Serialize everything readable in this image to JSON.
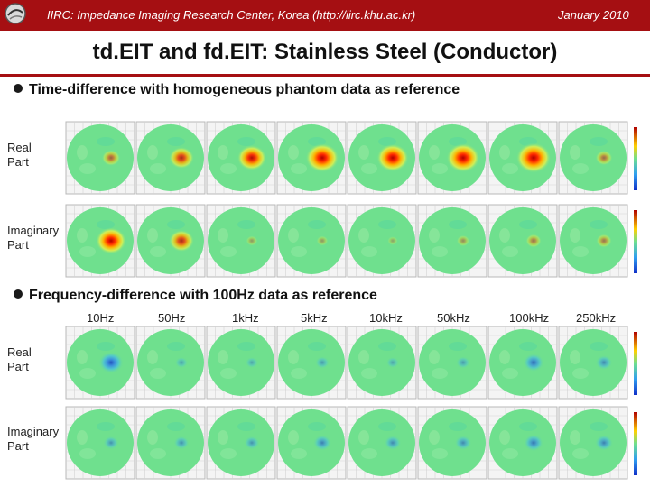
{
  "header": {
    "left_text": "IIRC: Impedance Imaging Research Center, Korea (http://iirc.khu.ac.kr)",
    "right_text": "January 2010",
    "logo": "iirc-logo-icon"
  },
  "title": "td.EIT and fd.EIT: Stainless Steel (Conductor)",
  "section1": {
    "bullet": "Time-difference with homogeneous phantom data as reference",
    "rows": [
      {
        "label1": "Real",
        "label2": "Part",
        "intensity": [
          0.3,
          0.55,
          0.7,
          0.85,
          0.8,
          0.85,
          0.9,
          0.25
        ],
        "sign": 1
      },
      {
        "label1": "Imaginary",
        "label2": "Part",
        "intensity": [
          0.75,
          0.55,
          0.05,
          0.05,
          0.0,
          0.1,
          0.2,
          0.2
        ],
        "sign": 1
      }
    ]
  },
  "section2": {
    "bullet": "Frequency-difference with 100Hz data as reference",
    "frequencies": [
      "10Hz",
      "50Hz",
      "1kHz",
      "5kHz",
      "10kHz",
      "50kHz",
      "100kHz",
      "250kHz"
    ],
    "rows": [
      {
        "label1": "Real",
        "label2": "Part",
        "intensity": [
          0.55,
          0.1,
          0.1,
          0.15,
          0.1,
          0.15,
          0.4,
          0.25
        ],
        "sign": -1
      },
      {
        "label1": "Imaginary",
        "label2": "Part",
        "intensity": [
          0.2,
          0.2,
          0.2,
          0.3,
          0.25,
          0.25,
          0.35,
          0.3
        ],
        "sign": -1
      }
    ]
  },
  "colors": {
    "header": "#a50f12",
    "background_green": "#66e08a"
  }
}
